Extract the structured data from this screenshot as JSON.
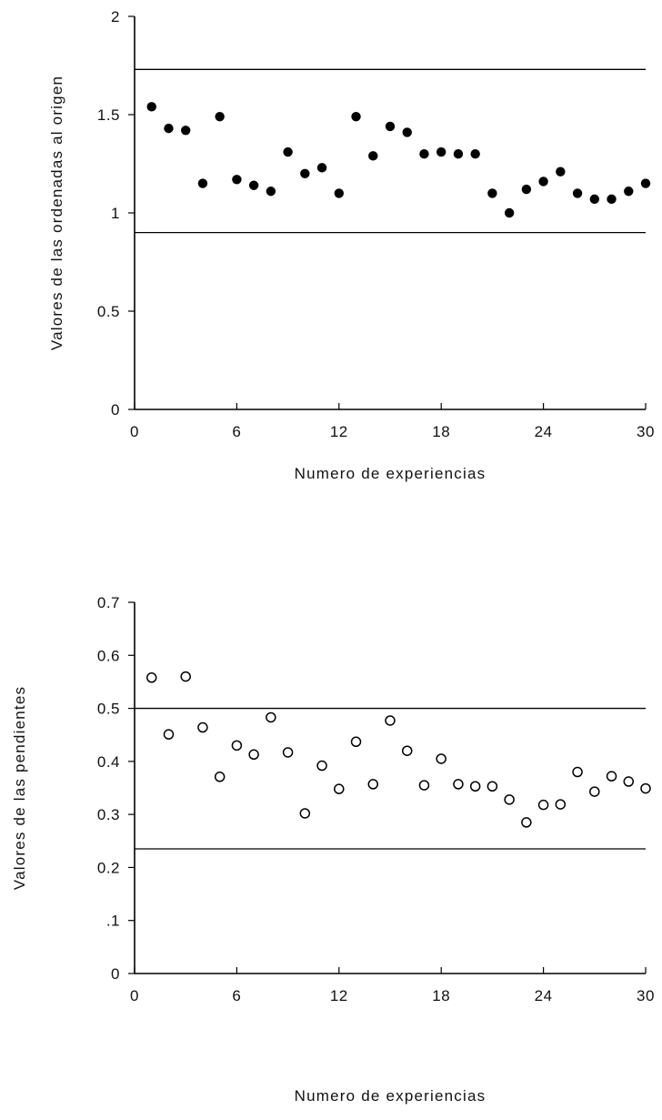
{
  "chart_data": [
    {
      "type": "scatter",
      "xlabel": "Numero de experiencias",
      "ylabel": "Valores de las ordenadas al origen",
      "xlim": [
        0,
        30
      ],
      "ylim": [
        0,
        2
      ],
      "xticks": [
        0,
        6,
        12,
        18,
        24,
        30
      ],
      "xtick_labels": [
        "0",
        "6",
        "12",
        "18",
        "24",
        "30"
      ],
      "yticks": [
        0,
        0.5,
        1,
        1.5,
        2
      ],
      "ytick_labels": [
        "0",
        "0.5",
        "1",
        "1.5",
        "2"
      ],
      "reference_lines": [
        1.73,
        0.9
      ],
      "marker": "filled",
      "grid": false,
      "x": [
        1,
        2,
        3,
        4,
        5,
        6,
        7,
        8,
        9,
        10,
        11,
        12,
        13,
        14,
        15,
        16,
        17,
        18,
        19,
        20,
        21,
        22,
        23,
        24,
        25,
        26,
        27,
        28,
        29,
        30
      ],
      "y": [
        1.54,
        1.43,
        1.42,
        1.15,
        1.49,
        1.17,
        1.14,
        1.11,
        1.31,
        1.2,
        1.23,
        1.1,
        1.49,
        1.29,
        1.44,
        1.41,
        1.3,
        1.31,
        1.3,
        1.3,
        1.1,
        1.0,
        1.12,
        1.16,
        1.21,
        1.1,
        1.07,
        1.07,
        1.11,
        1.15
      ]
    },
    {
      "type": "scatter",
      "xlabel": "Numero de experiencias",
      "ylabel": "Valores de las pendientes",
      "xlim": [
        0,
        30
      ],
      "ylim": [
        0,
        0.7
      ],
      "xticks": [
        0,
        6,
        12,
        18,
        24,
        30
      ],
      "xtick_labels": [
        "0",
        "6",
        "12",
        "18",
        "24",
        "30"
      ],
      "yticks": [
        0,
        0.1,
        0.2,
        0.3,
        0.4,
        0.5,
        0.6,
        0.7
      ],
      "ytick_labels": [
        "0",
        ".1",
        "0.2",
        "0.3",
        "0.4",
        "0.5",
        "0.6",
        "0.7"
      ],
      "reference_lines": [
        0.5,
        0.235
      ],
      "marker": "open",
      "grid": false,
      "x": [
        1,
        2,
        3,
        4,
        5,
        6,
        7,
        8,
        9,
        10,
        11,
        12,
        13,
        14,
        15,
        16,
        17,
        18,
        19,
        20,
        21,
        22,
        23,
        24,
        25,
        26,
        27,
        28,
        29,
        30
      ],
      "y": [
        0.558,
        0.451,
        0.56,
        0.464,
        0.371,
        0.43,
        0.413,
        0.483,
        0.417,
        0.302,
        0.392,
        0.348,
        0.437,
        0.357,
        0.477,
        0.42,
        0.355,
        0.405,
        0.357,
        0.353,
        0.353,
        0.328,
        0.285,
        0.318,
        0.319,
        0.38,
        0.343,
        0.372,
        0.362,
        0.349
      ]
    }
  ]
}
